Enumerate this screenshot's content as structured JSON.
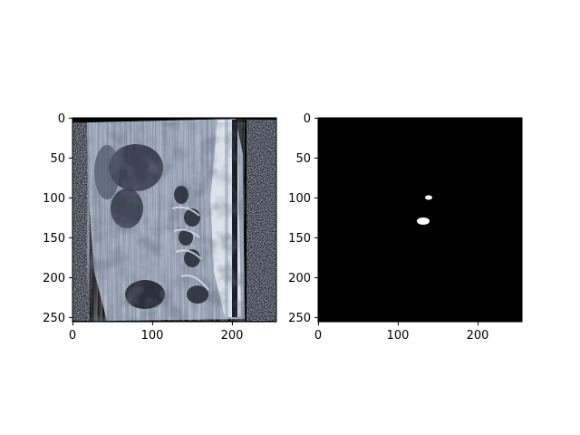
{
  "panels": [
    {
      "id": "mri-slice",
      "colormap": "bone",
      "xticks": [
        "0",
        "100",
        "200"
      ],
      "yticks": [
        "0",
        "50",
        "100",
        "150",
        "200",
        "250"
      ]
    },
    {
      "id": "segmentation-mask",
      "colormap": "gray",
      "xticks": [
        "0",
        "100",
        "200"
      ],
      "yticks": [
        "0",
        "50",
        "100",
        "150",
        "200",
        "250"
      ]
    }
  ],
  "colors": {
    "background": "#ffffff",
    "mask_background": "#000000",
    "mask_foreground": "#ffffff",
    "tissue_light": "#c9d3de",
    "tissue_mid": "#8c97aa",
    "tissue_dark": "#3a4155"
  }
}
